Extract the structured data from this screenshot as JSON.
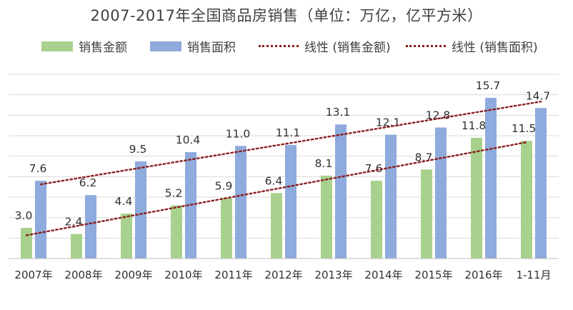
{
  "chart_data": {
    "type": "bar",
    "title": "2007-2017年全国商品房销售（单位：万亿，亿平方米）",
    "categories": [
      "2007年",
      "2008年",
      "2009年",
      "2010年",
      "2011年",
      "2012年",
      "2013年",
      "2014年",
      "2015年",
      "2016年",
      "1-11月"
    ],
    "series": [
      {
        "name": "销售金额",
        "color": "#a9d18e",
        "values": [
          3.0,
          2.4,
          4.4,
          5.2,
          5.9,
          6.4,
          8.1,
          7.6,
          8.7,
          11.8,
          11.5
        ]
      },
      {
        "name": "销售面积",
        "color": "#8faadc",
        "values": [
          7.6,
          6.2,
          9.5,
          10.4,
          11.0,
          11.1,
          13.1,
          12.1,
          12.8,
          15.7,
          14.7
        ]
      }
    ],
    "trendlines": [
      {
        "name": "线性 (销售金额)",
        "color": "#8b1d1d",
        "style": "dotted"
      },
      {
        "name": "线性 (销售面积)",
        "color": "#8b1d1d",
        "style": "dotted"
      }
    ],
    "ylim": [
      0,
      18
    ],
    "grid": true,
    "legend": "top"
  }
}
